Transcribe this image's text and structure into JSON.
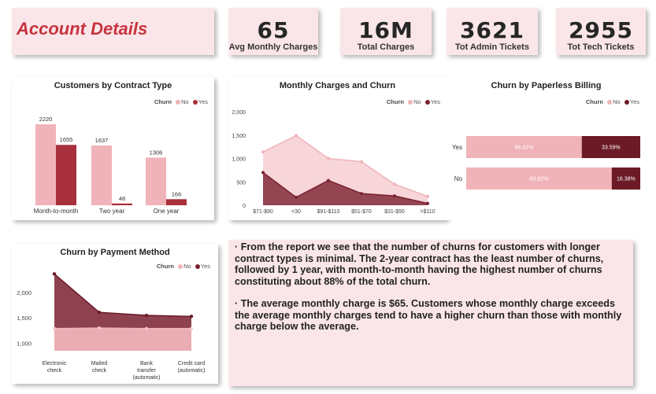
{
  "header": {
    "title": "Account Details"
  },
  "kpis": [
    {
      "value": "65",
      "label": "Avg Monthly Charges"
    },
    {
      "value": "16M",
      "label": "Total Charges"
    },
    {
      "value": "3621",
      "label": "Tot Admin Tickets"
    },
    {
      "value": "2955",
      "label": "Tot Tech Tickets"
    }
  ],
  "legend": {
    "title": "Churn",
    "no": "No",
    "yes": "Yes"
  },
  "colors": {
    "no": "#f0b3b9",
    "yes": "#a8303d",
    "area_yes": "#7a2130",
    "insight_bg": "#fae6e8"
  },
  "chart_data": [
    {
      "id": "contract",
      "type": "bar",
      "title": "Customers by Contract Type",
      "categories": [
        "Month-to-month",
        "Two year",
        "One year"
      ],
      "series": [
        {
          "name": "No",
          "values": [
            2220,
            1637,
            1306
          ]
        },
        {
          "name": "Yes",
          "values": [
            1655,
            48,
            166
          ]
        }
      ],
      "legend": "top-right"
    },
    {
      "id": "monthly",
      "type": "area",
      "title": "Monthly Charges and Churn",
      "categories": [
        "$71-$90",
        "<30",
        "$91-$110",
        "$51-$70",
        "$31-$50",
        ">$110"
      ],
      "series": [
        {
          "name": "No",
          "values": [
            1140,
            1490,
            1000,
            930,
            450,
            190
          ]
        },
        {
          "name": "Yes",
          "values": [
            700,
            170,
            530,
            250,
            200,
            40
          ]
        }
      ],
      "ylim": [
        0,
        2000
      ],
      "yticks": [
        "0",
        "500",
        "1,000",
        "1,500",
        "2,000"
      ],
      "legend": "top-right"
    },
    {
      "id": "paperless",
      "type": "bar",
      "title": "Churn by Paperless Billing",
      "categories": [
        "Yes",
        "No"
      ],
      "series": [
        {
          "name": "No",
          "values": [
            66.41,
            83.62
          ],
          "labels": [
            "66.41%",
            "83.62%"
          ]
        },
        {
          "name": "Yes",
          "values": [
            33.59,
            16.38
          ],
          "labels": [
            "33.59%",
            "16.38%"
          ]
        }
      ],
      "legend": "top-right"
    },
    {
      "id": "payment",
      "type": "area",
      "title": "Churn by Payment Method",
      "categories": [
        "Electronic check",
        "Mailed check",
        "Bank transfer (automatic)",
        "Credit card (automatic)"
      ],
      "category_lines": [
        [
          "Electronic",
          "check"
        ],
        [
          "Mailed",
          "check"
        ],
        [
          "Bank",
          "transfer",
          "(automatic)"
        ],
        [
          "Credit card",
          "(automatic)"
        ]
      ],
      "series": [
        {
          "name": "No",
          "values": [
            1290,
            1300,
            1290,
            1290
          ]
        },
        {
          "name": "Yes",
          "values": [
            2370,
            1610,
            1550,
            1530
          ]
        }
      ],
      "ylim": [
        850,
        2500
      ],
      "yticks": [
        "1,000",
        "1,500",
        "2,000"
      ],
      "ytick_values": [
        1000,
        1500,
        2000
      ],
      "legend": "top-right"
    }
  ],
  "insights": [
    "From the report we see that the number of churns for customers with longer contract types is minimal. The 2-year contract has the least number of churns, followed by 1 year, with month-to-month having the highest number of churns constituting about 88% of the total churn.",
    "The average monthly charge is $65. Customers whose monthly charge exceeds the average monthly charges tend to have a higher churn than those with monthly charge below the average."
  ]
}
